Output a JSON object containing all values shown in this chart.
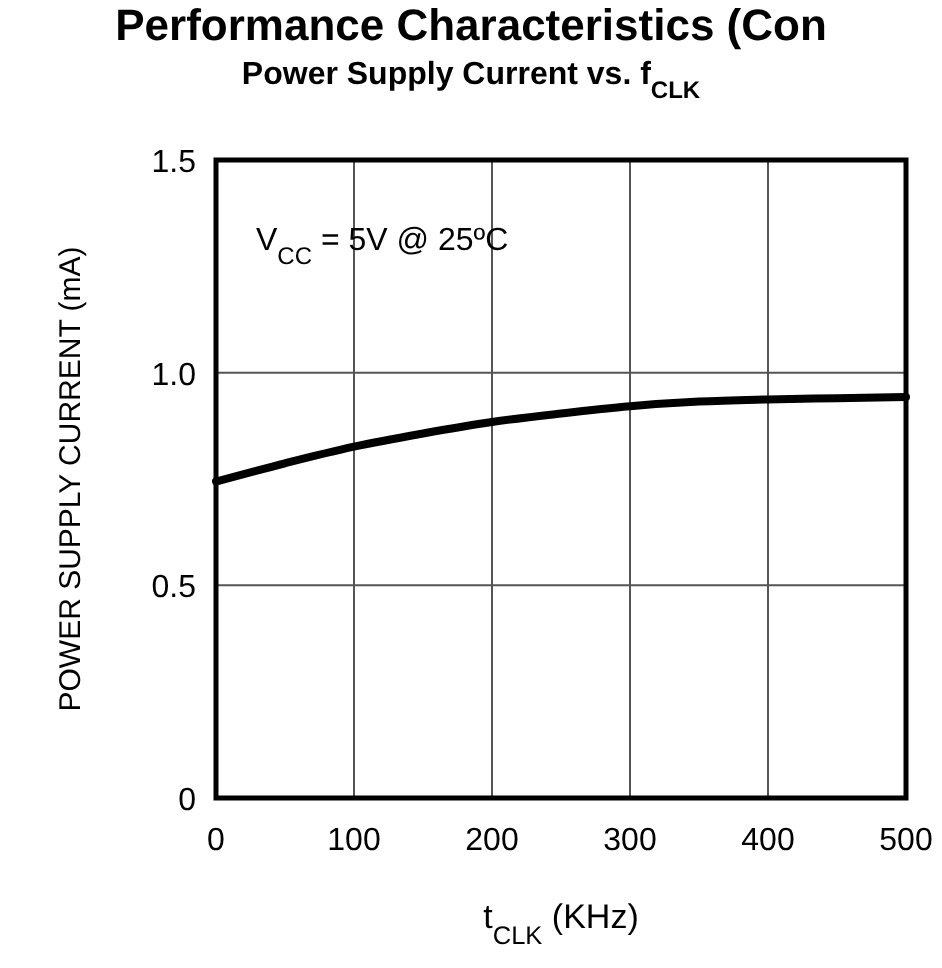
{
  "chart_data": {
    "type": "line",
    "title": "Performance Characteristics (Con",
    "subtitle": "Power Supply Current vs. f$_{CLK}$",
    "xlabel": "t$_{CLK}$ (KHz)",
    "ylabel": "POWER SUPPLY CURRENT (mA)",
    "annotations": [
      "V$_{CC}$ = 5V  @ 25ºC"
    ],
    "x": [
      0,
      50,
      100,
      150,
      200,
      250,
      300,
      350,
      400,
      450,
      500
    ],
    "series": [
      {
        "color": "#000000",
        "values": [
          0.744,
          0.787,
          0.826,
          0.857,
          0.884,
          0.904,
          0.921,
          0.932,
          0.937,
          0.94,
          0.943
        ]
      }
    ],
    "xlim": [
      0,
      500
    ],
    "xticks": [
      0,
      100,
      200,
      300,
      400,
      500
    ],
    "ylim": [
      0,
      1.5
    ],
    "yticks": [
      0,
      0.5,
      {
        "value": 1.0,
        "label": "1.0"
      },
      1.5
    ],
    "grid": true,
    "marker": "none",
    "line_style": "solid"
  }
}
